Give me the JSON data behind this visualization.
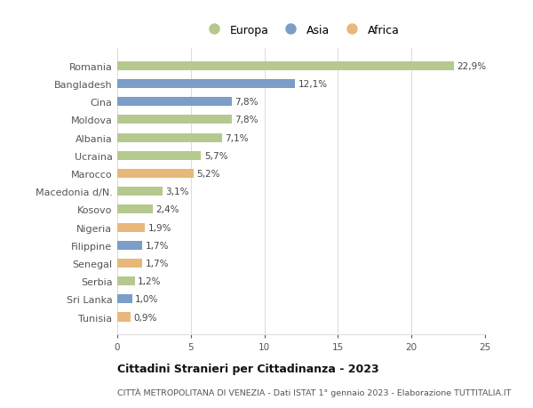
{
  "countries": [
    "Romania",
    "Bangladesh",
    "Cina",
    "Moldova",
    "Albania",
    "Ucraina",
    "Marocco",
    "Macedonia d/N.",
    "Kosovo",
    "Nigeria",
    "Filippine",
    "Senegal",
    "Serbia",
    "Sri Lanka",
    "Tunisia"
  ],
  "values": [
    22.9,
    12.1,
    7.8,
    7.8,
    7.1,
    5.7,
    5.2,
    3.1,
    2.4,
    1.9,
    1.7,
    1.7,
    1.2,
    1.0,
    0.9
  ],
  "labels": [
    "22,9%",
    "12,1%",
    "7,8%",
    "7,8%",
    "7,1%",
    "5,7%",
    "5,2%",
    "3,1%",
    "2,4%",
    "1,9%",
    "1,7%",
    "1,7%",
    "1,2%",
    "1,0%",
    "0,9%"
  ],
  "continents": [
    "Europa",
    "Asia",
    "Asia",
    "Europa",
    "Europa",
    "Europa",
    "Africa",
    "Europa",
    "Europa",
    "Africa",
    "Asia",
    "Africa",
    "Europa",
    "Asia",
    "Africa"
  ],
  "colors": {
    "Europa": "#b5c98e",
    "Asia": "#7b9dc7",
    "Africa": "#e8b87a"
  },
  "xlim": [
    0,
    25
  ],
  "xticks": [
    0,
    5,
    10,
    15,
    20,
    25
  ],
  "title": "Cittadini Stranieri per Cittadinanza - 2023",
  "subtitle": "CITTÀ METROPOLITANA DI VENEZIA - Dati ISTAT 1° gennaio 2023 - Elaborazione TUTTITALIA.IT",
  "background_color": "#ffffff",
  "grid_color": "#dddddd",
  "bar_height": 0.5,
  "label_fontsize": 7.5,
  "ytick_fontsize": 8,
  "xtick_fontsize": 7.5,
  "title_fontsize": 9,
  "subtitle_fontsize": 6.8,
  "legend_fontsize": 9
}
